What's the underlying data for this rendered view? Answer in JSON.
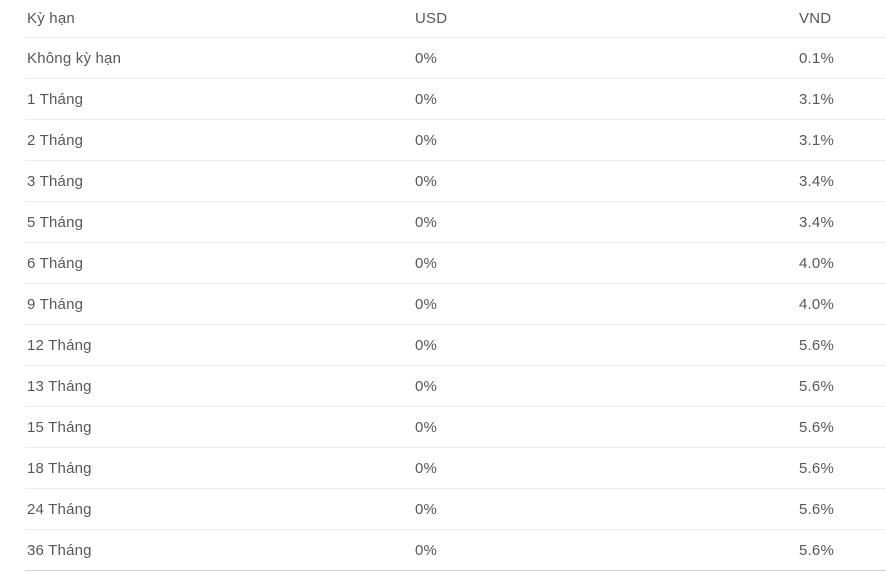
{
  "table": {
    "columns": [
      {
        "id": "term",
        "label": "Kỳ hạn"
      },
      {
        "id": "usd",
        "label": "USD"
      },
      {
        "id": "vnd",
        "label": "VND"
      }
    ],
    "rows": [
      {
        "term": "Không kỳ hạn",
        "usd": "0%",
        "vnd": "0.1%"
      },
      {
        "term": "1 Tháng",
        "usd": "0%",
        "vnd": "3.1%"
      },
      {
        "term": "2 Tháng",
        "usd": "0%",
        "vnd": "3.1%"
      },
      {
        "term": "3 Tháng",
        "usd": "0%",
        "vnd": "3.4%"
      },
      {
        "term": "5 Tháng",
        "usd": "0%",
        "vnd": "3.4%"
      },
      {
        "term": "6 Tháng",
        "usd": "0%",
        "vnd": "4.0%"
      },
      {
        "term": "9 Tháng",
        "usd": "0%",
        "vnd": "4.0%"
      },
      {
        "term": "12 Tháng",
        "usd": "0%",
        "vnd": "5.6%"
      },
      {
        "term": "13 Tháng",
        "usd": "0%",
        "vnd": "5.6%"
      },
      {
        "term": "15 Tháng",
        "usd": "0%",
        "vnd": "5.6%"
      },
      {
        "term": "18 Tháng",
        "usd": "0%",
        "vnd": "5.6%"
      },
      {
        "term": "24 Tháng",
        "usd": "0%",
        "vnd": "5.6%"
      },
      {
        "term": "36 Tháng",
        "usd": "0%",
        "vnd": "5.6%"
      }
    ]
  },
  "chart_data": {
    "type": "table",
    "title": "",
    "columns": [
      "Kỳ hạn",
      "USD",
      "VND"
    ],
    "rows": [
      [
        "Không kỳ hạn",
        "0%",
        "0.1%"
      ],
      [
        "1 Tháng",
        "0%",
        "3.1%"
      ],
      [
        "2 Tháng",
        "0%",
        "3.1%"
      ],
      [
        "3 Tháng",
        "0%",
        "3.4%"
      ],
      [
        "5 Tháng",
        "0%",
        "3.4%"
      ],
      [
        "6 Tháng",
        "0%",
        "4.0%"
      ],
      [
        "9 Tháng",
        "0%",
        "4.0%"
      ],
      [
        "12 Tháng",
        "0%",
        "5.6%"
      ],
      [
        "13 Tháng",
        "0%",
        "5.6%"
      ],
      [
        "15 Tháng",
        "0%",
        "5.6%"
      ],
      [
        "18 Tháng",
        "0%",
        "5.6%"
      ],
      [
        "24 Tháng",
        "0%",
        "5.6%"
      ],
      [
        "36 Tháng",
        "0%",
        "5.6%"
      ]
    ]
  },
  "colors": {
    "text": "#54595f",
    "row_border": "#e9ebed",
    "bottom_border": "#ccd1d6",
    "background": "#ffffff"
  }
}
